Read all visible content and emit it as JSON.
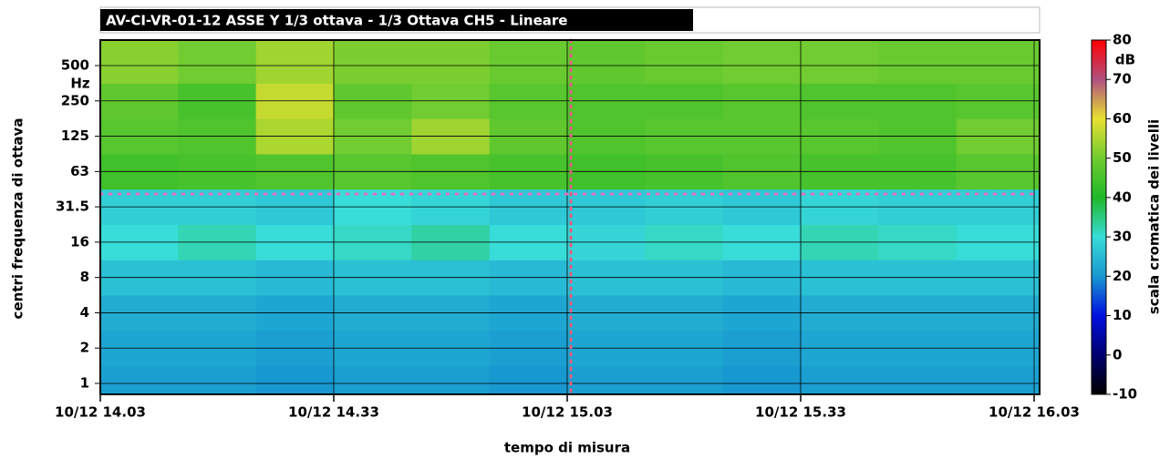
{
  "chart_data": {
    "type": "heatmap",
    "title": "AV-CI-VR-01-12 ASSE Y 1/3 ottava - 1/3 Ottava CH5 - Lineare",
    "x_label": "tempo di misura",
    "y_label": "centri frequenza di ottava",
    "y_unit": "Hz",
    "xlim": [
      0,
      120
    ],
    "xticks": [
      {
        "value": 0,
        "label": "10/12 14.03"
      },
      {
        "value": 30,
        "label": "10/12 14.33"
      },
      {
        "value": 60,
        "label": "10/12 15.03"
      },
      {
        "value": 90,
        "label": "10/12 15.33"
      },
      {
        "value": 120,
        "label": "10/12 16.03"
      }
    ],
    "x": [
      0,
      10,
      20,
      30,
      40,
      50,
      60,
      70,
      80,
      90,
      100,
      110
    ],
    "yticks": [
      1,
      2,
      4,
      8,
      16,
      31.5,
      63,
      125,
      250,
      500
    ],
    "values": [
      [
        21,
        21,
        20,
        21,
        21,
        20,
        21,
        21,
        20,
        21,
        21,
        21
      ],
      [
        22,
        22,
        21,
        22,
        22,
        21,
        22,
        22,
        21,
        22,
        22,
        22
      ],
      [
        23,
        23,
        22,
        23,
        23,
        22,
        23,
        23,
        22,
        23,
        23,
        23
      ],
      [
        26,
        26,
        25,
        26,
        26,
        25,
        26,
        26,
        25,
        26,
        26,
        26
      ],
      [
        30,
        32,
        30,
        31,
        33,
        30,
        29,
        31,
        30,
        32,
        31,
        30
      ],
      [
        28,
        28,
        27,
        30,
        29,
        27,
        27,
        28,
        27,
        29,
        28,
        28
      ],
      [
        44,
        45,
        46,
        47,
        46,
        45,
        44,
        45,
        46,
        45,
        45,
        47
      ],
      [
        47,
        46,
        55,
        50,
        54,
        48,
        46,
        47,
        47,
        47,
        46,
        50
      ],
      [
        48,
        45,
        57,
        48,
        50,
        47,
        46,
        46,
        47,
        46,
        46,
        47
      ],
      [
        52,
        50,
        54,
        51,
        51,
        49,
        48,
        49,
        50,
        50,
        49,
        49
      ]
    ],
    "colorbar": {
      "label": "scala cromatica dei livelli",
      "unit": "dB",
      "lim": [
        -10,
        80
      ],
      "ticks": [
        -10,
        0,
        10,
        20,
        30,
        40,
        50,
        60,
        70,
        80
      ],
      "colors": [
        "#000000",
        "#000070",
        "#0010e0",
        "#1898d0",
        "#38dcd8",
        "#20b828",
        "#70cc30",
        "#e8e030",
        "#b05080",
        "#ff0000"
      ]
    }
  }
}
